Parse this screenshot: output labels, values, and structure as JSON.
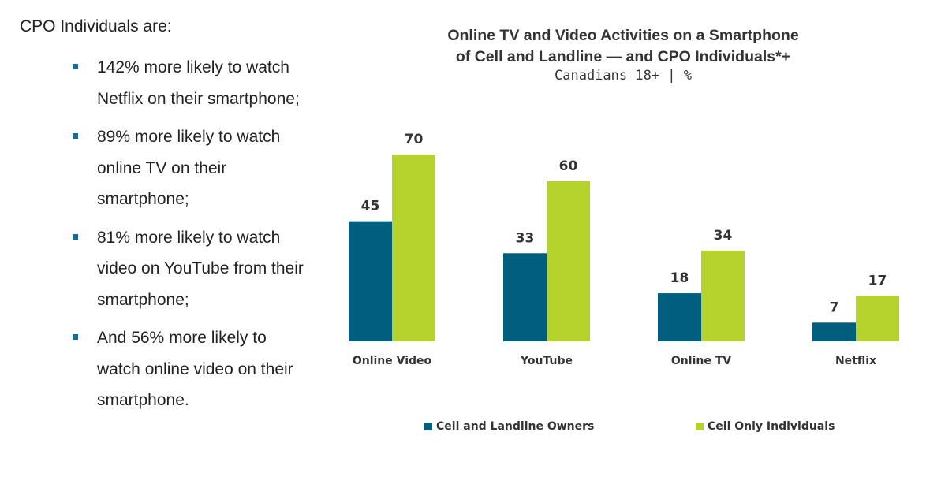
{
  "intro": "CPO Individuals are:",
  "bullets": [
    "142% more likely to watch Netflix on their smartphone;",
    "89% more likely to watch online TV on their smartphone;",
    "81% more likely to watch video on YouTube from their smartphone;",
    "And 56% more likely to watch online video on their smartphone."
  ],
  "colors": {
    "cell_and_landline": "#005f7f",
    "cell_only": "#b5d22d",
    "bullet": "#1b6b8a"
  },
  "chart_data": {
    "type": "bar",
    "title_line1": "Online TV and Video Activities on a Smartphone",
    "title_line2": "of Cell and Landline — and CPO Individuals*+",
    "subtitle": "Canadians 18+ | %",
    "categories": [
      "Online Video",
      "YouTube",
      "Online TV",
      "Netflix"
    ],
    "series": [
      {
        "name": "Cell and Landline Owners",
        "values": [
          45,
          33,
          18,
          7
        ]
      },
      {
        "name": "Cell Only Individuals",
        "values": [
          70,
          60,
          34,
          17
        ]
      }
    ],
    "ylim": [
      0,
      70
    ],
    "grid": false,
    "legend_position": "bottom",
    "data_labels": true
  }
}
